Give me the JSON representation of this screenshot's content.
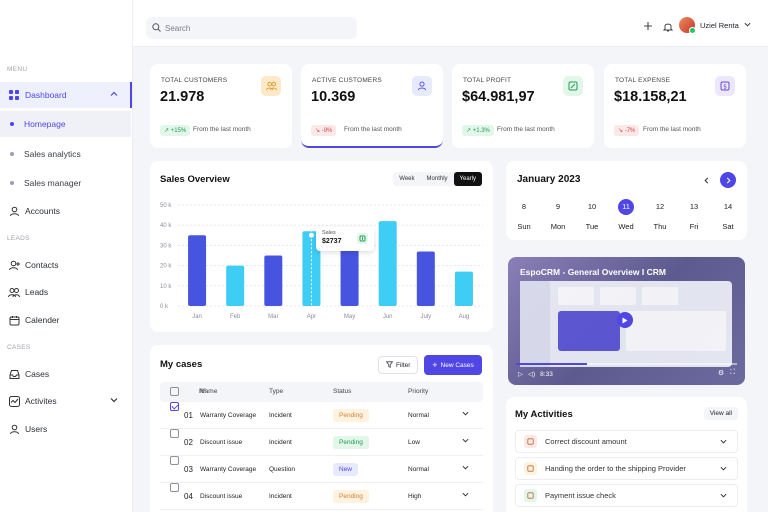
{
  "sidebar": {
    "sections": {
      "menu": "MENU",
      "leads": "LEADS",
      "cases": "CASES"
    },
    "dashboard": "Dashboard",
    "sub": [
      "Homepage",
      "Sales analytics",
      "Sales manager"
    ],
    "accounts": "Accounts",
    "contacts": "Contacts",
    "leads": "Leads",
    "calender": "Calender",
    "cases": "Cases",
    "activites": "Activites",
    "users": "Users"
  },
  "topbar": {
    "search_placeholder": "Search",
    "user_name": "Uziel Renta"
  },
  "stats": [
    {
      "label": "TOTAL CUSTOMERS",
      "value": "21.978",
      "badge": "+15%",
      "trend": "up",
      "from": "From the last month",
      "icon": "users-icon",
      "color": "#fde9c8"
    },
    {
      "label": "ACTIVE CUSTOMERS",
      "value": "10.369",
      "badge": "-9%",
      "trend": "down",
      "from": "From the last month",
      "icon": "user-icon",
      "color": "#e7e9fd"
    },
    {
      "label": "TOTAL PROFIT",
      "value": "$64.981,97",
      "badge": "+1.3%",
      "trend": "up",
      "from": "From the last month",
      "icon": "profit-icon",
      "color": "#e3f6ea"
    },
    {
      "label": "TOTAL EXPENSE",
      "value": "$18.158,21",
      "badge": "-7%",
      "trend": "down",
      "from": "From the last month",
      "icon": "dollar-icon",
      "color": "#ece7fb"
    }
  ],
  "sales": {
    "title": "Sales Overview",
    "ranges": [
      "Week",
      "Monthly",
      "Yearly"
    ],
    "selected_range": "Yearly",
    "tooltip_label": "Sales",
    "tooltip_value": "$2737"
  },
  "chart_data": {
    "type": "bar",
    "categories": [
      "Jan",
      "Feb",
      "Mar",
      "Apr",
      "May",
      "Jun",
      "July",
      "Aug"
    ],
    "values": [
      35,
      20,
      25,
      37,
      28,
      42,
      27,
      17
    ],
    "y_ticks": [
      "50 k",
      "40 k",
      "30 k",
      "20 k",
      "10 k",
      "0 k"
    ],
    "ylim": [
      0,
      50
    ],
    "grid": true,
    "colors": [
      "#4654e0",
      "#3ecdf5",
      "#4654e0",
      "#3ecdf5",
      "#4654e0",
      "#3ecdf5",
      "#4654e0",
      "#3ecdf5"
    ]
  },
  "calendar": {
    "title": "January 2023",
    "days": [
      {
        "n": "8",
        "w": "Sun"
      },
      {
        "n": "9",
        "w": "Mon"
      },
      {
        "n": "10",
        "w": "Tue"
      },
      {
        "n": "11",
        "w": "Wed",
        "selected": true
      },
      {
        "n": "12",
        "w": "Thu"
      },
      {
        "n": "13",
        "w": "Fri"
      },
      {
        "n": "14",
        "w": "Sat"
      }
    ]
  },
  "video": {
    "title": "EspoCRM - General Overview I CRM",
    "time": "8:33"
  },
  "cases": {
    "title": "My cases",
    "filter_label": "Filter",
    "new_label": "New Cases",
    "headers": {
      "no": "Nº",
      "name": "Name",
      "type": "Type",
      "status": "Status",
      "priority": "Priority"
    },
    "rows": [
      {
        "no": "01",
        "name": "Warranty Coverage",
        "type": "Incident",
        "status": "Pending",
        "status_kind": "pending",
        "priority": "Normal",
        "checked": true
      },
      {
        "no": "02",
        "name": "Discount issue",
        "type": "Incident",
        "status": "Pending",
        "status_kind": "done",
        "priority": "Low",
        "checked": false
      },
      {
        "no": "03",
        "name": "Warranty Coverage",
        "type": "Question",
        "status": "New",
        "status_kind": "new",
        "priority": "Normal",
        "checked": false
      },
      {
        "no": "04",
        "name": "Discount issue",
        "type": "Incident",
        "status": "Pending",
        "status_kind": "pending",
        "priority": "High",
        "checked": false
      }
    ]
  },
  "activities": {
    "title": "My Activities",
    "view_all": "View all",
    "items": [
      {
        "label": "Correct discount amount",
        "color": "#fde8e8",
        "icon": "discount-icon"
      },
      {
        "label": "Handing the order to the shipping Provider",
        "color": "#fff2e0",
        "icon": "shipping-icon"
      },
      {
        "label": "Payment issue check",
        "color": "#e3f6ea",
        "icon": "payment-icon"
      }
    ]
  }
}
